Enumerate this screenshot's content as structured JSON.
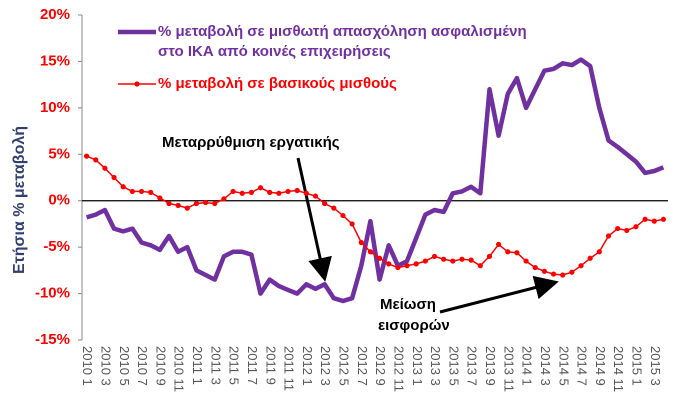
{
  "chart_data": {
    "type": "line",
    "y_label": "Ετήσια  % μεταβολή",
    "categories": [
      "2010 1",
      null,
      "2010 3",
      null,
      "2010 5",
      null,
      "2010 7",
      null,
      "2010 9",
      null,
      "2010 11",
      null,
      "2011 1",
      null,
      "2011 3",
      null,
      "2011 5",
      null,
      "2011 7",
      null,
      "2011 9",
      null,
      "2011 11",
      null,
      "2012 1",
      null,
      "2012 3",
      null,
      "2012 5",
      null,
      "2012 7",
      null,
      "2012 9",
      null,
      "2012 11",
      null,
      "2013 1",
      null,
      "2013 3",
      null,
      "2013 5",
      null,
      "2013 7",
      null,
      "2013 9",
      null,
      "2013 11",
      null,
      "2014 1",
      null,
      "2014 3",
      null,
      "2014 5",
      null,
      "2014 7",
      null,
      "2014 9",
      null,
      "2014 11",
      null,
      "2015 1",
      null,
      "2015 3",
      null
    ],
    "series": [
      {
        "name": "% μεταβολή σε μισθωτή απασχόληση ασφαλισμένη στο ΙΚΑ από κοινές επιχειρήσεις",
        "color": "#7030a0",
        "markers": false,
        "values": [
          -1.8,
          -1.5,
          -1.0,
          -3.0,
          -3.3,
          -3.0,
          -4.5,
          -4.8,
          -5.3,
          -3.8,
          -5.5,
          -5.0,
          -7.5,
          -8.0,
          -8.5,
          -6.0,
          -5.5,
          -5.5,
          -5.8,
          -10.0,
          -8.5,
          -9.2,
          -9.6,
          -10.0,
          -9.0,
          -9.5,
          -9.0,
          -10.5,
          -10.8,
          -10.5,
          -7.0,
          -2.2,
          -8.5,
          -4.8,
          -7.0,
          -6.5,
          -4.0,
          -1.5,
          -1.0,
          -1.2,
          0.8,
          1.0,
          1.5,
          0.8,
          12.0,
          7.0,
          11.5,
          13.2,
          10.0,
          12.0,
          14.0,
          14.2,
          14.8,
          14.6,
          15.2,
          14.5,
          10.0,
          6.5,
          5.8,
          5.0,
          4.2,
          3.0,
          3.2,
          3.6
        ]
      },
      {
        "name": "% μεταβολή σε βασικούς μισθούς",
        "color": "#ff0000",
        "markers": true,
        "values": [
          4.8,
          4.4,
          3.5,
          2.5,
          1.5,
          1.0,
          1.0,
          0.9,
          0.3,
          -0.3,
          -0.5,
          -0.8,
          -0.3,
          -0.2,
          -0.3,
          0.2,
          1.0,
          0.8,
          0.9,
          1.4,
          0.9,
          0.8,
          1.0,
          1.1,
          0.8,
          0.5,
          -0.3,
          -0.8,
          -1.6,
          -2.5,
          -4.5,
          -5.5,
          -6.2,
          -6.8,
          -7.2,
          -7.0,
          -6.8,
          -6.5,
          -6.0,
          -6.3,
          -6.5,
          -6.3,
          -6.4,
          -7.0,
          -6.0,
          -4.7,
          -5.5,
          -5.6,
          -6.5,
          -7.2,
          -7.6,
          -7.9,
          -8.0,
          -7.7,
          -7.0,
          -6.2,
          -5.5,
          -3.8,
          -3.0,
          -3.2,
          -2.8,
          -2.0,
          -2.2,
          -2.0
        ]
      }
    ],
    "ylim": [
      -15,
      20
    ],
    "yticks": [
      {
        "value": -15,
        "label": "-15%"
      },
      {
        "value": -10,
        "label": "-10%"
      },
      {
        "value": -5,
        "label": "-5%"
      },
      {
        "value": 0,
        "label": "0%"
      },
      {
        "value": 5,
        "label": "5%"
      },
      {
        "value": 10,
        "label": "10%"
      },
      {
        "value": 15,
        "label": "15%"
      },
      {
        "value": 20,
        "label": "20%"
      }
    ],
    "grid": false,
    "legend_position": "top-left",
    "annotations": [
      "Μεταρρύθμιση εργατικής",
      "Μείωση",
      "εισφορών"
    ]
  }
}
